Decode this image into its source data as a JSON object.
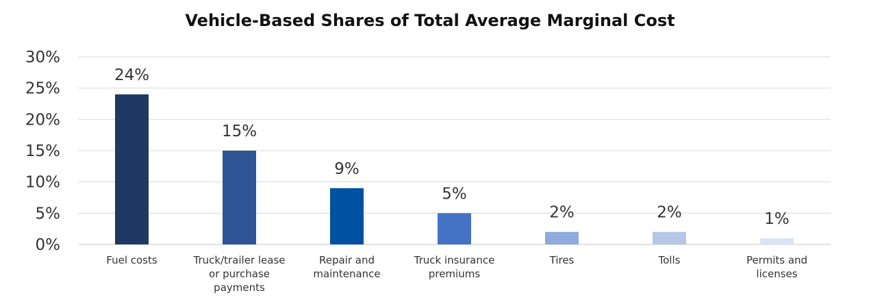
{
  "chart_data": {
    "type": "bar",
    "title": "Vehicle-Based Shares of Total Average Marginal Cost",
    "xlabel": "",
    "ylabel": "",
    "categories": [
      [
        "Fuel costs"
      ],
      [
        "Truck/trailer lease",
        "or purchase",
        "payments"
      ],
      [
        "Repair and",
        "maintenance"
      ],
      [
        "Truck insurance",
        "premiums"
      ],
      [
        "Tires"
      ],
      [
        "Tolls"
      ],
      [
        "Permits and",
        "licenses"
      ]
    ],
    "values": [
      24,
      15,
      9,
      5,
      2,
      2,
      1
    ],
    "data_labels": [
      "24%",
      "15%",
      "9%",
      "5%",
      "2%",
      "2%",
      "1%"
    ],
    "bar_colors": [
      "#203864",
      "#2F5597",
      "#0051A1",
      "#4472C4",
      "#8FAADC",
      "#B4C7E7",
      "#DAE3F3"
    ],
    "ylim": [
      0,
      30
    ],
    "yticks": [
      0,
      5,
      10,
      15,
      20,
      25,
      30
    ],
    "ytick_labels": [
      "0%",
      "5%",
      "10%",
      "15%",
      "20%",
      "25%",
      "30%"
    ],
    "grid": true,
    "grid_color": "#D9D9D9",
    "legend": "none"
  }
}
